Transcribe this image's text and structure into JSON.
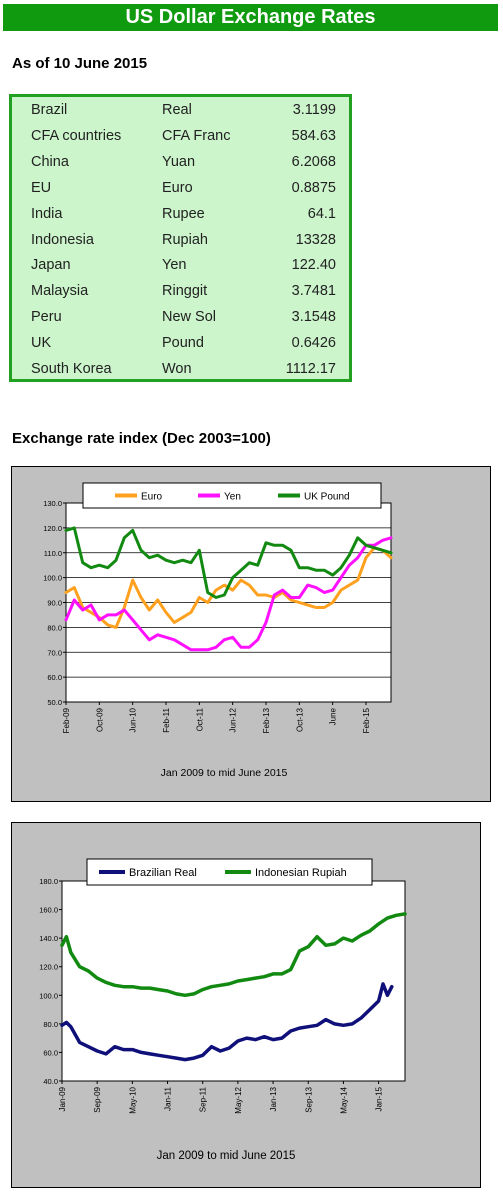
{
  "header": {
    "title": "US Dollar Exchange Rates",
    "as_of": "As of 10 June 2015"
  },
  "rates_table": [
    {
      "country": "Brazil",
      "currency": "Real",
      "rate": "3.1199"
    },
    {
      "country": "CFA countries",
      "currency": "CFA Franc",
      "rate": "584.63"
    },
    {
      "country": "China",
      "currency": "Yuan",
      "rate": "6.2068"
    },
    {
      "country": "EU",
      "currency": "Euro",
      "rate": "0.8875"
    },
    {
      "country": "India",
      "currency": "Rupee",
      "rate": "64.1"
    },
    {
      "country": "Indonesia",
      "currency": "Rupiah",
      "rate": "13328"
    },
    {
      "country": "Japan",
      "currency": "Yen",
      "rate": "122.40"
    },
    {
      "country": "Malaysia",
      "currency": "Ringgit",
      "rate": "3.7481"
    },
    {
      "country": "Peru",
      "currency": "New Sol",
      "rate": "3.1548"
    },
    {
      "country": "UK",
      "currency": "Pound",
      "rate": "0.6426"
    },
    {
      "country": "South Korea",
      "currency": "Won",
      "rate": "1112.17"
    }
  ],
  "index_section_title": "Exchange rate index (Dec 2003=100)",
  "chart_data": [
    {
      "type": "line",
      "title": "",
      "caption": "Jan 2009 to mid June 2015",
      "ylim": [
        50,
        130
      ],
      "yticks": [
        "50.0",
        "60.0",
        "70.0",
        "80.0",
        "90.0",
        "100.0",
        "110.0",
        "120.0",
        "130.0"
      ],
      "xticks": [
        {
          "label": "Feb-09",
          "t": 0
        },
        {
          "label": "Oct-09",
          "t": 8
        },
        {
          "label": "Jun-10",
          "t": 16
        },
        {
          "label": "Feb-11",
          "t": 24
        },
        {
          "label": "Oct-11",
          "t": 32
        },
        {
          "label": "Jun-12",
          "t": 40
        },
        {
          "label": "Feb-13",
          "t": 48
        },
        {
          "label": "Oct-13",
          "t": 56
        },
        {
          "label": "June",
          "t": 64
        },
        {
          "label": "Feb-15",
          "t": 72
        }
      ],
      "grid": true,
      "legend_position": "top",
      "series": [
        {
          "name": "Euro",
          "color": "#ffa01e",
          "points": [
            [
              0,
              94
            ],
            [
              2,
              96
            ],
            [
              4,
              88
            ],
            [
              6,
              86
            ],
            [
              8,
              84
            ],
            [
              10,
              81
            ],
            [
              12,
              80
            ],
            [
              14,
              88
            ],
            [
              16,
              99
            ],
            [
              18,
              92
            ],
            [
              20,
              87
            ],
            [
              22,
              91
            ],
            [
              24,
              86
            ],
            [
              26,
              82
            ],
            [
              28,
              84
            ],
            [
              30,
              86
            ],
            [
              32,
              92
            ],
            [
              34,
              90
            ],
            [
              36,
              95
            ],
            [
              38,
              97
            ],
            [
              40,
              95
            ],
            [
              42,
              99
            ],
            [
              44,
              97
            ],
            [
              46,
              93
            ],
            [
              48,
              93
            ],
            [
              50,
              92
            ],
            [
              52,
              94
            ],
            [
              54,
              91
            ],
            [
              56,
              90
            ],
            [
              58,
              89
            ],
            [
              60,
              88
            ],
            [
              62,
              88
            ],
            [
              64,
              90
            ],
            [
              66,
              95
            ],
            [
              68,
              97
            ],
            [
              70,
              99
            ],
            [
              72,
              108
            ],
            [
              74,
              112
            ],
            [
              76,
              111
            ],
            [
              78,
              108
            ]
          ]
        },
        {
          "name": "Yen",
          "color": "#ff10ff",
          "points": [
            [
              0,
              83
            ],
            [
              2,
              91
            ],
            [
              4,
              87
            ],
            [
              6,
              89
            ],
            [
              8,
              83
            ],
            [
              10,
              85
            ],
            [
              12,
              85
            ],
            [
              14,
              87
            ],
            [
              16,
              83
            ],
            [
              18,
              79
            ],
            [
              20,
              75
            ],
            [
              22,
              77
            ],
            [
              24,
              76
            ],
            [
              26,
              75
            ],
            [
              28,
              73
            ],
            [
              30,
              71
            ],
            [
              32,
              71
            ],
            [
              34,
              71
            ],
            [
              36,
              72
            ],
            [
              38,
              75
            ],
            [
              40,
              76
            ],
            [
              42,
              72
            ],
            [
              44,
              72
            ],
            [
              46,
              75
            ],
            [
              48,
              82
            ],
            [
              50,
              93
            ],
            [
              52,
              95
            ],
            [
              54,
              92
            ],
            [
              56,
              92
            ],
            [
              58,
              97
            ],
            [
              60,
              96
            ],
            [
              62,
              94
            ],
            [
              64,
              95
            ],
            [
              66,
              100
            ],
            [
              68,
              105
            ],
            [
              70,
              108
            ],
            [
              72,
              113
            ],
            [
              74,
              113
            ],
            [
              76,
              115
            ],
            [
              78,
              116
            ]
          ]
        },
        {
          "name": "UK Pound",
          "color": "#128a12",
          "points": [
            [
              0,
              119
            ],
            [
              2,
              120
            ],
            [
              4,
              106
            ],
            [
              6,
              104
            ],
            [
              8,
              105
            ],
            [
              10,
              104
            ],
            [
              12,
              107
            ],
            [
              14,
              116
            ],
            [
              16,
              119
            ],
            [
              18,
              111
            ],
            [
              20,
              108
            ],
            [
              22,
              109
            ],
            [
              24,
              107
            ],
            [
              26,
              106
            ],
            [
              28,
              107
            ],
            [
              30,
              106
            ],
            [
              32,
              111
            ],
            [
              34,
              94
            ],
            [
              36,
              92
            ],
            [
              38,
              93
            ],
            [
              40,
              100
            ],
            [
              42,
              103
            ],
            [
              44,
              106
            ],
            [
              46,
              105
            ],
            [
              48,
              114
            ],
            [
              50,
              113
            ],
            [
              52,
              113
            ],
            [
              54,
              111
            ],
            [
              56,
              104
            ],
            [
              58,
              104
            ],
            [
              60,
              103
            ],
            [
              62,
              103
            ],
            [
              64,
              101
            ],
            [
              66,
              104
            ],
            [
              68,
              109
            ],
            [
              70,
              116
            ],
            [
              72,
              113
            ],
            [
              74,
              112
            ],
            [
              76,
              111
            ],
            [
              78,
              110
            ]
          ]
        }
      ]
    },
    {
      "type": "line",
      "title": "",
      "caption": "Jan 2009 to mid June  2015",
      "ylim": [
        40,
        180
      ],
      "yticks": [
        "40.0",
        "60.0",
        "80.0",
        "100.0",
        "120.0",
        "140.0",
        "160.0",
        "180.0"
      ],
      "xticks": [
        {
          "label": "Jan-09",
          "t": 0
        },
        {
          "label": "Sep-09",
          "t": 8
        },
        {
          "label": "May-10",
          "t": 16
        },
        {
          "label": "Jan-11",
          "t": 24
        },
        {
          "label": "Sep-11",
          "t": 32
        },
        {
          "label": "May-12",
          "t": 40
        },
        {
          "label": "Jan-13",
          "t": 48
        },
        {
          "label": "Sep-13",
          "t": 56
        },
        {
          "label": "May-14",
          "t": 64
        },
        {
          "label": "Jan-15",
          "t": 72
        }
      ],
      "grid": false,
      "legend_position": "top",
      "series": [
        {
          "name": "Brazilian Real",
          "color": "#10107a",
          "points": [
            [
              0,
              79
            ],
            [
              1,
              81
            ],
            [
              2,
              78
            ],
            [
              4,
              67
            ],
            [
              6,
              64
            ],
            [
              8,
              61
            ],
            [
              10,
              59
            ],
            [
              12,
              64
            ],
            [
              14,
              62
            ],
            [
              16,
              62
            ],
            [
              18,
              60
            ],
            [
              20,
              59
            ],
            [
              22,
              58
            ],
            [
              24,
              57
            ],
            [
              26,
              56
            ],
            [
              28,
              55
            ],
            [
              30,
              56
            ],
            [
              32,
              58
            ],
            [
              34,
              64
            ],
            [
              36,
              61
            ],
            [
              38,
              63
            ],
            [
              40,
              68
            ],
            [
              42,
              70
            ],
            [
              44,
              69
            ],
            [
              46,
              71
            ],
            [
              48,
              69
            ],
            [
              50,
              70
            ],
            [
              52,
              75
            ],
            [
              54,
              77
            ],
            [
              56,
              78
            ],
            [
              58,
              79
            ],
            [
              60,
              83
            ],
            [
              62,
              80
            ],
            [
              64,
              79
            ],
            [
              66,
              80
            ],
            [
              68,
              84
            ],
            [
              70,
              90
            ],
            [
              72,
              96
            ],
            [
              73,
              108
            ],
            [
              74,
              100
            ],
            [
              75,
              106
            ]
          ]
        },
        {
          "name": "Indonesian Rupiah",
          "color": "#128a12",
          "points": [
            [
              0,
              135
            ],
            [
              1,
              141
            ],
            [
              2,
              130
            ],
            [
              4,
              120
            ],
            [
              6,
              117
            ],
            [
              8,
              112
            ],
            [
              10,
              109
            ],
            [
              12,
              107
            ],
            [
              14,
              106
            ],
            [
              16,
              106
            ],
            [
              18,
              105
            ],
            [
              20,
              105
            ],
            [
              22,
              104
            ],
            [
              24,
              103
            ],
            [
              26,
              101
            ],
            [
              28,
              100
            ],
            [
              30,
              101
            ],
            [
              32,
              104
            ],
            [
              34,
              106
            ],
            [
              36,
              107
            ],
            [
              38,
              108
            ],
            [
              40,
              110
            ],
            [
              42,
              111
            ],
            [
              44,
              112
            ],
            [
              46,
              113
            ],
            [
              48,
              115
            ],
            [
              50,
              115
            ],
            [
              52,
              118
            ],
            [
              54,
              131
            ],
            [
              56,
              134
            ],
            [
              58,
              141
            ],
            [
              60,
              135
            ],
            [
              62,
              136
            ],
            [
              64,
              140
            ],
            [
              66,
              138
            ],
            [
              68,
              142
            ],
            [
              70,
              145
            ],
            [
              72,
              150
            ],
            [
              74,
              154
            ],
            [
              76,
              156
            ],
            [
              78,
              157
            ]
          ]
        }
      ]
    }
  ]
}
